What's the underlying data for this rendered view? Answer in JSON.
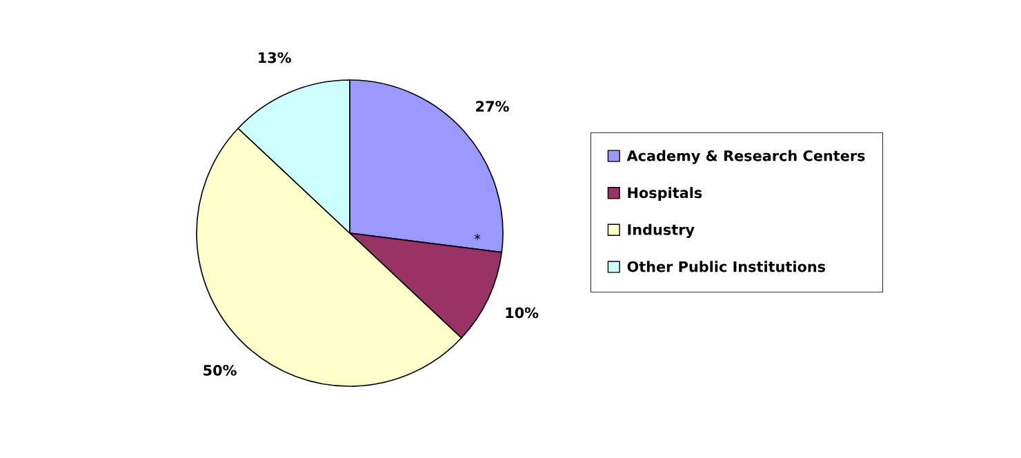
{
  "chart_data": {
    "type": "pie",
    "categories": [
      "Academy & Research Centers",
      "Hospitals",
      "Industry",
      "Other Public Institutions"
    ],
    "values": [
      27,
      10,
      50,
      13
    ],
    "value_labels": [
      "27%",
      "10%",
      "50%",
      "13%"
    ],
    "colors": [
      "#9999ff",
      "#993366",
      "#ffffcc",
      "#ccffff"
    ],
    "annotations": [
      "*"
    ],
    "legend": "right"
  }
}
